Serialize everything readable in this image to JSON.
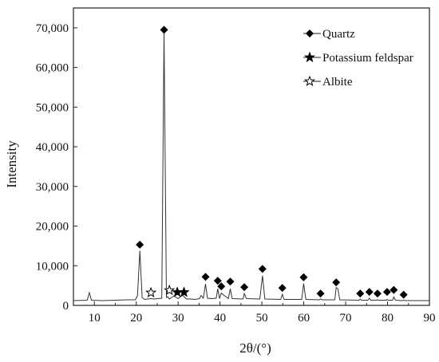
{
  "chart_data": {
    "type": "line",
    "title": "",
    "xlabel": "2θ/(°)",
    "ylabel": "Intensity",
    "xlim": [
      5,
      90
    ],
    "ylim": [
      0,
      75000
    ],
    "x_ticks": [
      10,
      20,
      30,
      40,
      50,
      60,
      70,
      80,
      90
    ],
    "y_ticks": [
      0,
      10000,
      20000,
      30000,
      40000,
      50000,
      60000,
      70000
    ],
    "y_tick_labels": [
      "0",
      "10,000",
      "20,000",
      "30,000",
      "40,000",
      "50,000",
      "60,000",
      "70,000"
    ],
    "x_tick_labels": [
      "10",
      "20",
      "30",
      "40",
      "50",
      "60",
      "70",
      "80",
      "90"
    ],
    "grid": false,
    "legend_position": "top-right",
    "legend": [
      {
        "label": "Quartz",
        "marker": "filled-diamond"
      },
      {
        "label": "Potassium feldspar",
        "marker": "filled-star"
      },
      {
        "label": "Albite",
        "marker": "open-star"
      }
    ],
    "series": [
      {
        "values_description_free": true,
        "x": [
          5,
          8.3,
          8.8,
          9.3,
          12,
          17.8,
          19.8,
          20.3,
          20.85,
          21.4,
          22.0,
          23.5,
          24.2,
          26.1,
          26.64,
          27.2,
          27.5,
          27.9,
          29,
          30,
          31,
          32,
          33,
          34,
          35.1,
          35.5,
          36,
          36.54,
          37,
          38,
          39.1,
          39.46,
          39.9,
          40.3,
          42.0,
          42.45,
          42.9,
          45.5,
          45.8,
          46.3,
          49.5,
          50.14,
          50.7,
          54.5,
          54.87,
          55.3,
          59.5,
          59.96,
          60.5,
          63.7,
          64.0,
          64.4,
          67.4,
          67.74,
          68.14,
          68.6,
          73.2,
          73.47,
          73.8,
          75.3,
          75.66,
          76,
          77.3,
          77.6,
          77.9,
          79.7,
          79.88,
          80.2,
          81.2,
          81.49,
          81.9,
          83.5,
          83.84,
          84.3,
          90
        ],
        "y": [
          1200,
          1300,
          3200,
          1300,
          1200,
          1400,
          1400,
          2500,
          13800,
          2000,
          1500,
          1700,
          1600,
          1800,
          69000,
          2000,
          2200,
          1600,
          2400,
          1700,
          2600,
          1600,
          1600,
          1500,
          1700,
          2500,
          1800,
          5400,
          1800,
          1700,
          1800,
          4200,
          1700,
          3100,
          1700,
          4200,
          1700,
          1600,
          3000,
          1700,
          1600,
          7500,
          1600,
          1500,
          2800,
          1500,
          1500,
          5500,
          1500,
          1400,
          1600,
          1400,
          1400,
          4500,
          4200,
          1400,
          1300,
          1600,
          1300,
          1300,
          1800,
          1300,
          1300,
          1400,
          1300,
          1300,
          1500,
          1300,
          1300,
          2100,
          1300,
          1200,
          1300,
          1200,
          1200
        ]
      }
    ],
    "annotations": {
      "quartz_x": [
        20.85,
        26.64,
        36.54,
        39.46,
        40.3,
        42.45,
        45.8,
        50.14,
        54.87,
        59.96,
        64.0,
        67.74,
        73.47,
        75.66,
        77.6,
        79.88,
        81.49,
        83.84
      ],
      "quartz_y": [
        15300,
        69500,
        7200,
        6200,
        4800,
        6000,
        4600,
        9200,
        4400,
        7100,
        3000,
        5800,
        3000,
        3400,
        3000,
        3400,
        3900,
        2700
      ],
      "potassium_feldspar_x": [
        29.8,
        31.4
      ],
      "potassium_feldspar_y": [
        3300,
        3300
      ],
      "albite_x": [
        23.5,
        27.9
      ],
      "albite_y": [
        3200,
        3800
      ]
    }
  }
}
